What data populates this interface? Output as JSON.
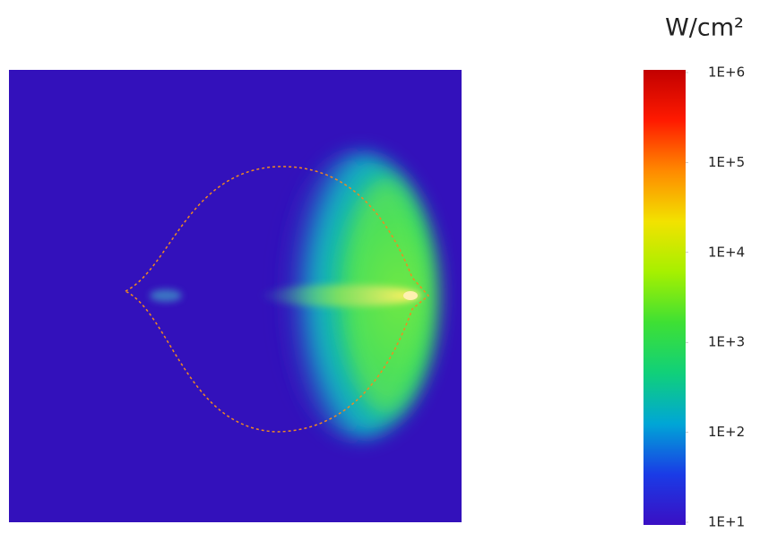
{
  "chart_data": {
    "type": "heatmap",
    "colorbar_label": "W/cm²",
    "clim": [
      10,
      1000000
    ],
    "log_scale": true,
    "colormap": [
      "#3a0fc4",
      "#1a3be6",
      "#00a6d6",
      "#10d07a",
      "#3ee034",
      "#a6f000",
      "#f2e200",
      "#ff8a00",
      "#ff1a00",
      "#c20000"
    ],
    "cticks": [
      {
        "value": 10,
        "label": "1E+1"
      },
      {
        "value": 100,
        "label": "1E+2"
      },
      {
        "value": 1000,
        "label": "1E+3"
      },
      {
        "value": 10000,
        "label": "1E+4"
      },
      {
        "value": 100000,
        "label": "1E+5"
      },
      {
        "value": 1000000,
        "label": "1E+6"
      }
    ]
  }
}
